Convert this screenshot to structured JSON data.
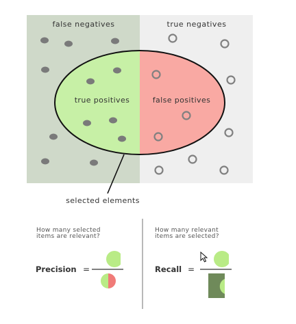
{
  "colors": {
    "relevant_bg": "#cfd9c9",
    "irrelevant_bg": "#efefef",
    "tp_fill": "#c7f0a6",
    "fp_fill": "#f9a9a3",
    "dot_fill": "#7a7a7a",
    "ring_stroke": "#808080",
    "green_mark": "#b9eb86",
    "red_mark": "#f07b78",
    "dark_green_rect": "#6f8a5a",
    "text": "#333333"
  },
  "labels": {
    "false_negatives": "false negatives",
    "true_negatives": "true negatives",
    "true_positives": "true positives",
    "false_positives": "false positives",
    "selected_elements": "selected elements"
  },
  "precision": {
    "question_line1": "How many selected",
    "question_line2": "items are relevant?",
    "label": "Precision",
    "equals": "="
  },
  "recall": {
    "question_line1": "How many relevant",
    "question_line2": "items are selected?",
    "label": "Recall",
    "equals": "="
  },
  "icons": {
    "cursor": "mouse-pointer-icon"
  }
}
